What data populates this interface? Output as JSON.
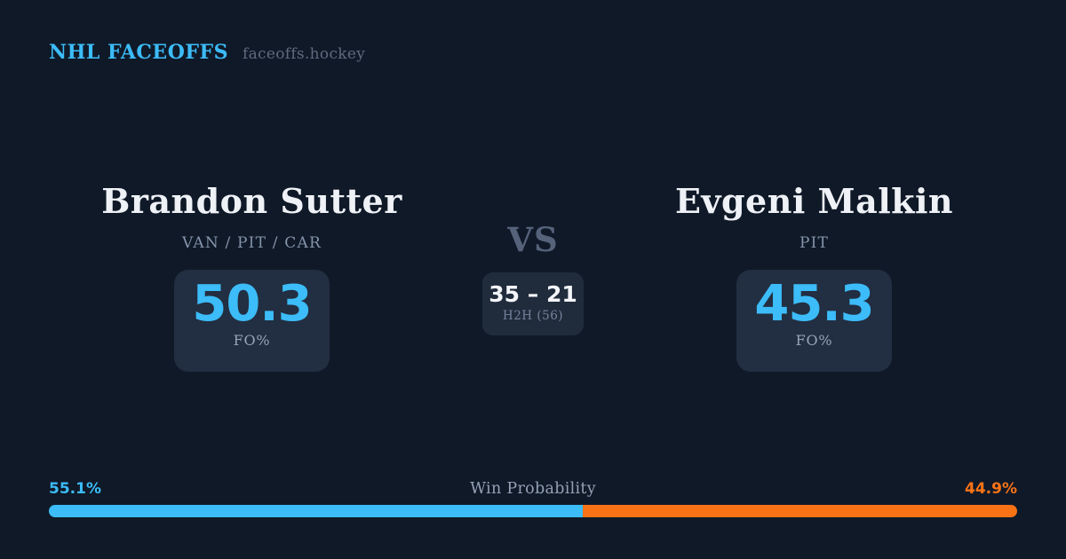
{
  "brand": {
    "name": "NHL FACEOFFS",
    "domain": "faceoffs.hockey"
  },
  "players": {
    "left": {
      "name": "Brandon Sutter",
      "teams": "VAN / PIT / CAR",
      "fo_value": "50.3",
      "fo_label": "FO%"
    },
    "right": {
      "name": "Evgeni Malkin",
      "teams": "PIT",
      "fo_value": "45.3",
      "fo_label": "FO%"
    }
  },
  "matchup": {
    "vs_label": "VS",
    "h2h_score": "35 – 21",
    "h2h_label": "H2H (56)"
  },
  "win_probability": {
    "title": "Win Probability",
    "left_label": "55.1%",
    "right_label": "44.9%",
    "left_value": 55.1,
    "right_value": 44.9
  },
  "colors": {
    "background": "#101928",
    "panel": "#222e41",
    "panel_h2h": "#202b3c",
    "accent_blue": "#3cbcf8",
    "accent_orange": "#f97316",
    "text_primary": "#eef1f6",
    "text_muted": "#8494aa",
    "text_vs": "#55627a"
  },
  "chart_data": {
    "type": "bar",
    "title": "Win Probability",
    "categories": [
      "Brandon Sutter",
      "Evgeni Malkin"
    ],
    "values": [
      55.1,
      44.9
    ],
    "colors": [
      "#3cbcf8",
      "#f97316"
    ],
    "layout": "horizontal stacked 100% bar, blue left / orange right, labels at outer ends",
    "stats": {
      "faceoff_pct": {
        "Brandon Sutter": 50.3,
        "Evgeni Malkin": 45.3
      },
      "head_to_head": {
        "Brandon Sutter": 35,
        "Evgeni Malkin": 21,
        "total": 56
      }
    }
  }
}
